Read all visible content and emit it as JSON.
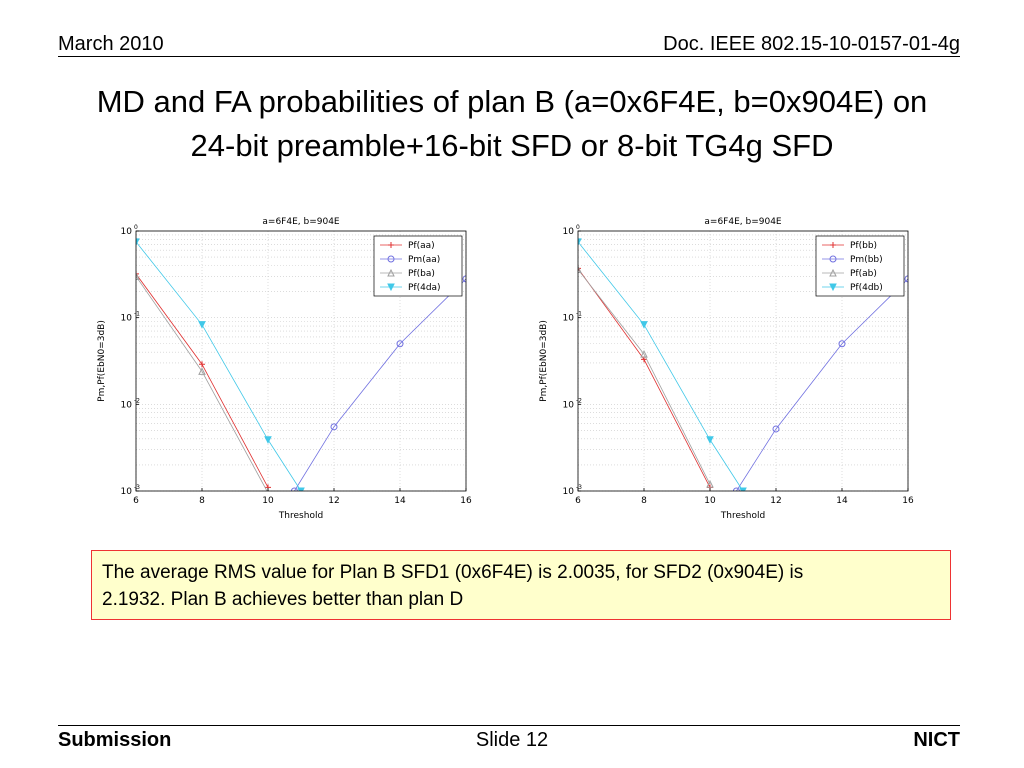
{
  "header": {
    "date": "March 2010",
    "doc": "Doc. IEEE 802.15-10-0157-01-4g"
  },
  "title": {
    "line1": "MD and FA probabilities of plan B (a=0x6F4E, b=0x904E) on",
    "line2": "24-bit preamble+16-bit SFD or 8-bit TG4g SFD"
  },
  "note": {
    "line1": "The average RMS value for Plan B SFD1 (0x6F4E) is 2.0035, for SFD2 (0x904E) is",
    "line2": "2.1932.  Plan B achieves better than plan D"
  },
  "footer": {
    "left": "Submission",
    "center": "Slide 12",
    "right": "NICT"
  },
  "chart_data": [
    {
      "type": "line",
      "title": "a=6F4E, b=904E",
      "xlabel": "Threshold",
      "ylabel": "Pm,Pf(EbN0=3dB)",
      "xlim": [
        6,
        16
      ],
      "ylim": [
        0.001,
        1
      ],
      "yscale": "log",
      "grid": true,
      "legend_position": "top-right",
      "xticks": [
        "6",
        "8",
        "10",
        "12",
        "14",
        "16"
      ],
      "series": [
        {
          "name": "Pf(aa)",
          "marker": "plus",
          "color": "#e03030",
          "x": [
            6,
            8,
            10
          ],
          "y": [
            0.32,
            0.029,
            0.0011
          ]
        },
        {
          "name": "Pm(aa)",
          "marker": "circle",
          "color": "#7070e0",
          "x": [
            10.8,
            12,
            14,
            16
          ],
          "y": [
            0.001,
            0.0055,
            0.05,
            0.28
          ]
        },
        {
          "name": "Pf(ba)",
          "marker": "triangle",
          "color": "#a0a0a0",
          "x": [
            6,
            8,
            10
          ],
          "y": [
            0.3,
            0.024,
            0.00095
          ]
        },
        {
          "name": "Pf(4da)",
          "marker": "triangle-down",
          "color": "#40c8e8",
          "x": [
            6,
            8,
            10,
            11
          ],
          "y": [
            0.75,
            0.083,
            0.0039,
            0.001
          ]
        }
      ]
    },
    {
      "type": "line",
      "title": "a=6F4E, b=904E",
      "xlabel": "Threshold",
      "ylabel": "Pm,Pf(EbN0=3dB)",
      "xlim": [
        6,
        16
      ],
      "ylim": [
        0.001,
        1
      ],
      "yscale": "log",
      "grid": true,
      "legend_position": "top-right",
      "xticks": [
        "6",
        "8",
        "10",
        "12",
        "14",
        "16"
      ],
      "series": [
        {
          "name": "Pf(bb)",
          "marker": "plus",
          "color": "#e03030",
          "x": [
            6,
            8,
            10
          ],
          "y": [
            0.37,
            0.033,
            0.0011
          ]
        },
        {
          "name": "Pm(bb)",
          "marker": "circle",
          "color": "#7070e0",
          "x": [
            10.8,
            12,
            14,
            16
          ],
          "y": [
            0.001,
            0.0052,
            0.05,
            0.28
          ]
        },
        {
          "name": "Pf(ab)",
          "marker": "triangle",
          "color": "#a0a0a0",
          "x": [
            6,
            8,
            10
          ],
          "y": [
            0.36,
            0.038,
            0.0012
          ]
        },
        {
          "name": "Pf(4db)",
          "marker": "triangle-down",
          "color": "#40c8e8",
          "x": [
            6,
            8,
            10,
            11
          ],
          "y": [
            0.75,
            0.083,
            0.0039,
            0.001
          ]
        }
      ]
    }
  ]
}
